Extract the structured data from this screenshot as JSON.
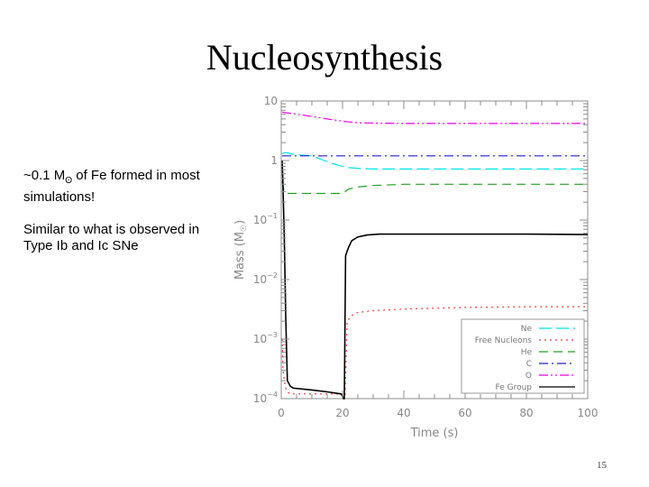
{
  "slide": {
    "title": "Nucleosynthesis",
    "note_line1_pre": "~0.1 M",
    "note_line1_sub": "ʘ",
    "note_line1_post": " of Fe formed in most simulations!",
    "note_para2": "Similar to what is observed in Type Ib and Ic SNe",
    "page_number": "15"
  },
  "chart_data": {
    "type": "line",
    "xlabel": "Time (s)",
    "ylabel": "Mass (M",
    "ylabel_sub": "☉",
    "ylabel_close": ")",
    "y_scale": "log",
    "xlim": [
      0,
      100
    ],
    "ylim": [
      0.0001,
      10
    ],
    "x_ticks": [
      0,
      20,
      40,
      60,
      80,
      100
    ],
    "x_tick_labels": [
      "0",
      "20",
      "40",
      "60",
      "80",
      "100"
    ],
    "y_ticks": [
      0.0001,
      0.001,
      0.01,
      0.1,
      1,
      10
    ],
    "y_tick_labels": [
      {
        "base": "10",
        "exp": "−4"
      },
      {
        "base": "10",
        "exp": "−3"
      },
      {
        "base": "10",
        "exp": "−2"
      },
      {
        "base": "10",
        "exp": "−1"
      },
      {
        "base": "1",
        "exp": ""
      },
      {
        "base": "10",
        "exp": ""
      }
    ],
    "grid": false,
    "legend_position": "bottom-right",
    "series": [
      {
        "name": "Ne",
        "color": "#00e5ee",
        "dash": "14,5",
        "x": [
          0.3,
          1,
          2,
          3,
          5,
          8,
          10,
          12,
          14,
          16,
          18,
          20,
          22,
          25,
          30,
          40,
          60,
          80,
          100
        ],
        "y": [
          1.3,
          1.35,
          1.35,
          1.3,
          1.25,
          1.22,
          1.2,
          1.1,
          1.0,
          0.92,
          0.85,
          0.8,
          0.76,
          0.74,
          0.72,
          0.72,
          0.72,
          0.72,
          0.72
        ]
      },
      {
        "name": "Free Nucleons",
        "color": "#ee3b3b",
        "dash": "2,4",
        "x": [
          0.3,
          0.6,
          1,
          1.5,
          2,
          3,
          5,
          10,
          15,
          20,
          20.3,
          20.8,
          21.5,
          23,
          25,
          30,
          40,
          60,
          80,
          100
        ],
        "y": [
          0.001,
          0.0003,
          0.0002,
          0.00015,
          0.00013,
          0.00012,
          0.00012,
          0.00012,
          0.00012,
          0.00012,
          0.0001,
          0.0001,
          0.002,
          0.0025,
          0.0028,
          0.003,
          0.0032,
          0.0034,
          0.0035,
          0.0035
        ]
      },
      {
        "name": "He",
        "color": "#22a022",
        "dash": "10,6",
        "x": [
          0.3,
          1,
          2,
          5,
          10,
          15,
          20,
          22,
          25,
          30,
          40,
          60,
          80,
          100
        ],
        "y": [
          0.45,
          0.3,
          0.28,
          0.28,
          0.28,
          0.28,
          0.28,
          0.33,
          0.36,
          0.38,
          0.4,
          0.4,
          0.4,
          0.4
        ]
      },
      {
        "name": "C",
        "color": "#2020cc",
        "dash": "10,4,2,4",
        "x": [
          0.3,
          100
        ],
        "y": [
          1.2,
          1.2
        ]
      },
      {
        "name": "O",
        "color": "#ee00ee",
        "dash": "10,3,2,3,2,3",
        "x": [
          0.3,
          5,
          10,
          15,
          20,
          25,
          40,
          60,
          80,
          100
        ],
        "y": [
          6.5,
          6.0,
          5.5,
          5.0,
          4.6,
          4.3,
          4.2,
          4.2,
          4.2,
          4.2
        ]
      },
      {
        "name": "Fe Group",
        "color": "#000000",
        "dash": "",
        "x": [
          0.3,
          0.5,
          1.0,
          1.5,
          2.0,
          3.0,
          4.0,
          10,
          15,
          19.5,
          20.0,
          20.3,
          20.6,
          21.0,
          21.5,
          22,
          23,
          25,
          28,
          32,
          40,
          60,
          80,
          100
        ],
        "y": [
          1.0,
          0.5,
          0.05,
          0.002,
          0.0002,
          0.00016,
          0.00015,
          0.00014,
          0.00013,
          0.00012,
          0.00011,
          0.0001,
          0.0001,
          0.025,
          0.03,
          0.035,
          0.045,
          0.052,
          0.056,
          0.058,
          0.058,
          0.058,
          0.058,
          0.057
        ]
      }
    ]
  }
}
